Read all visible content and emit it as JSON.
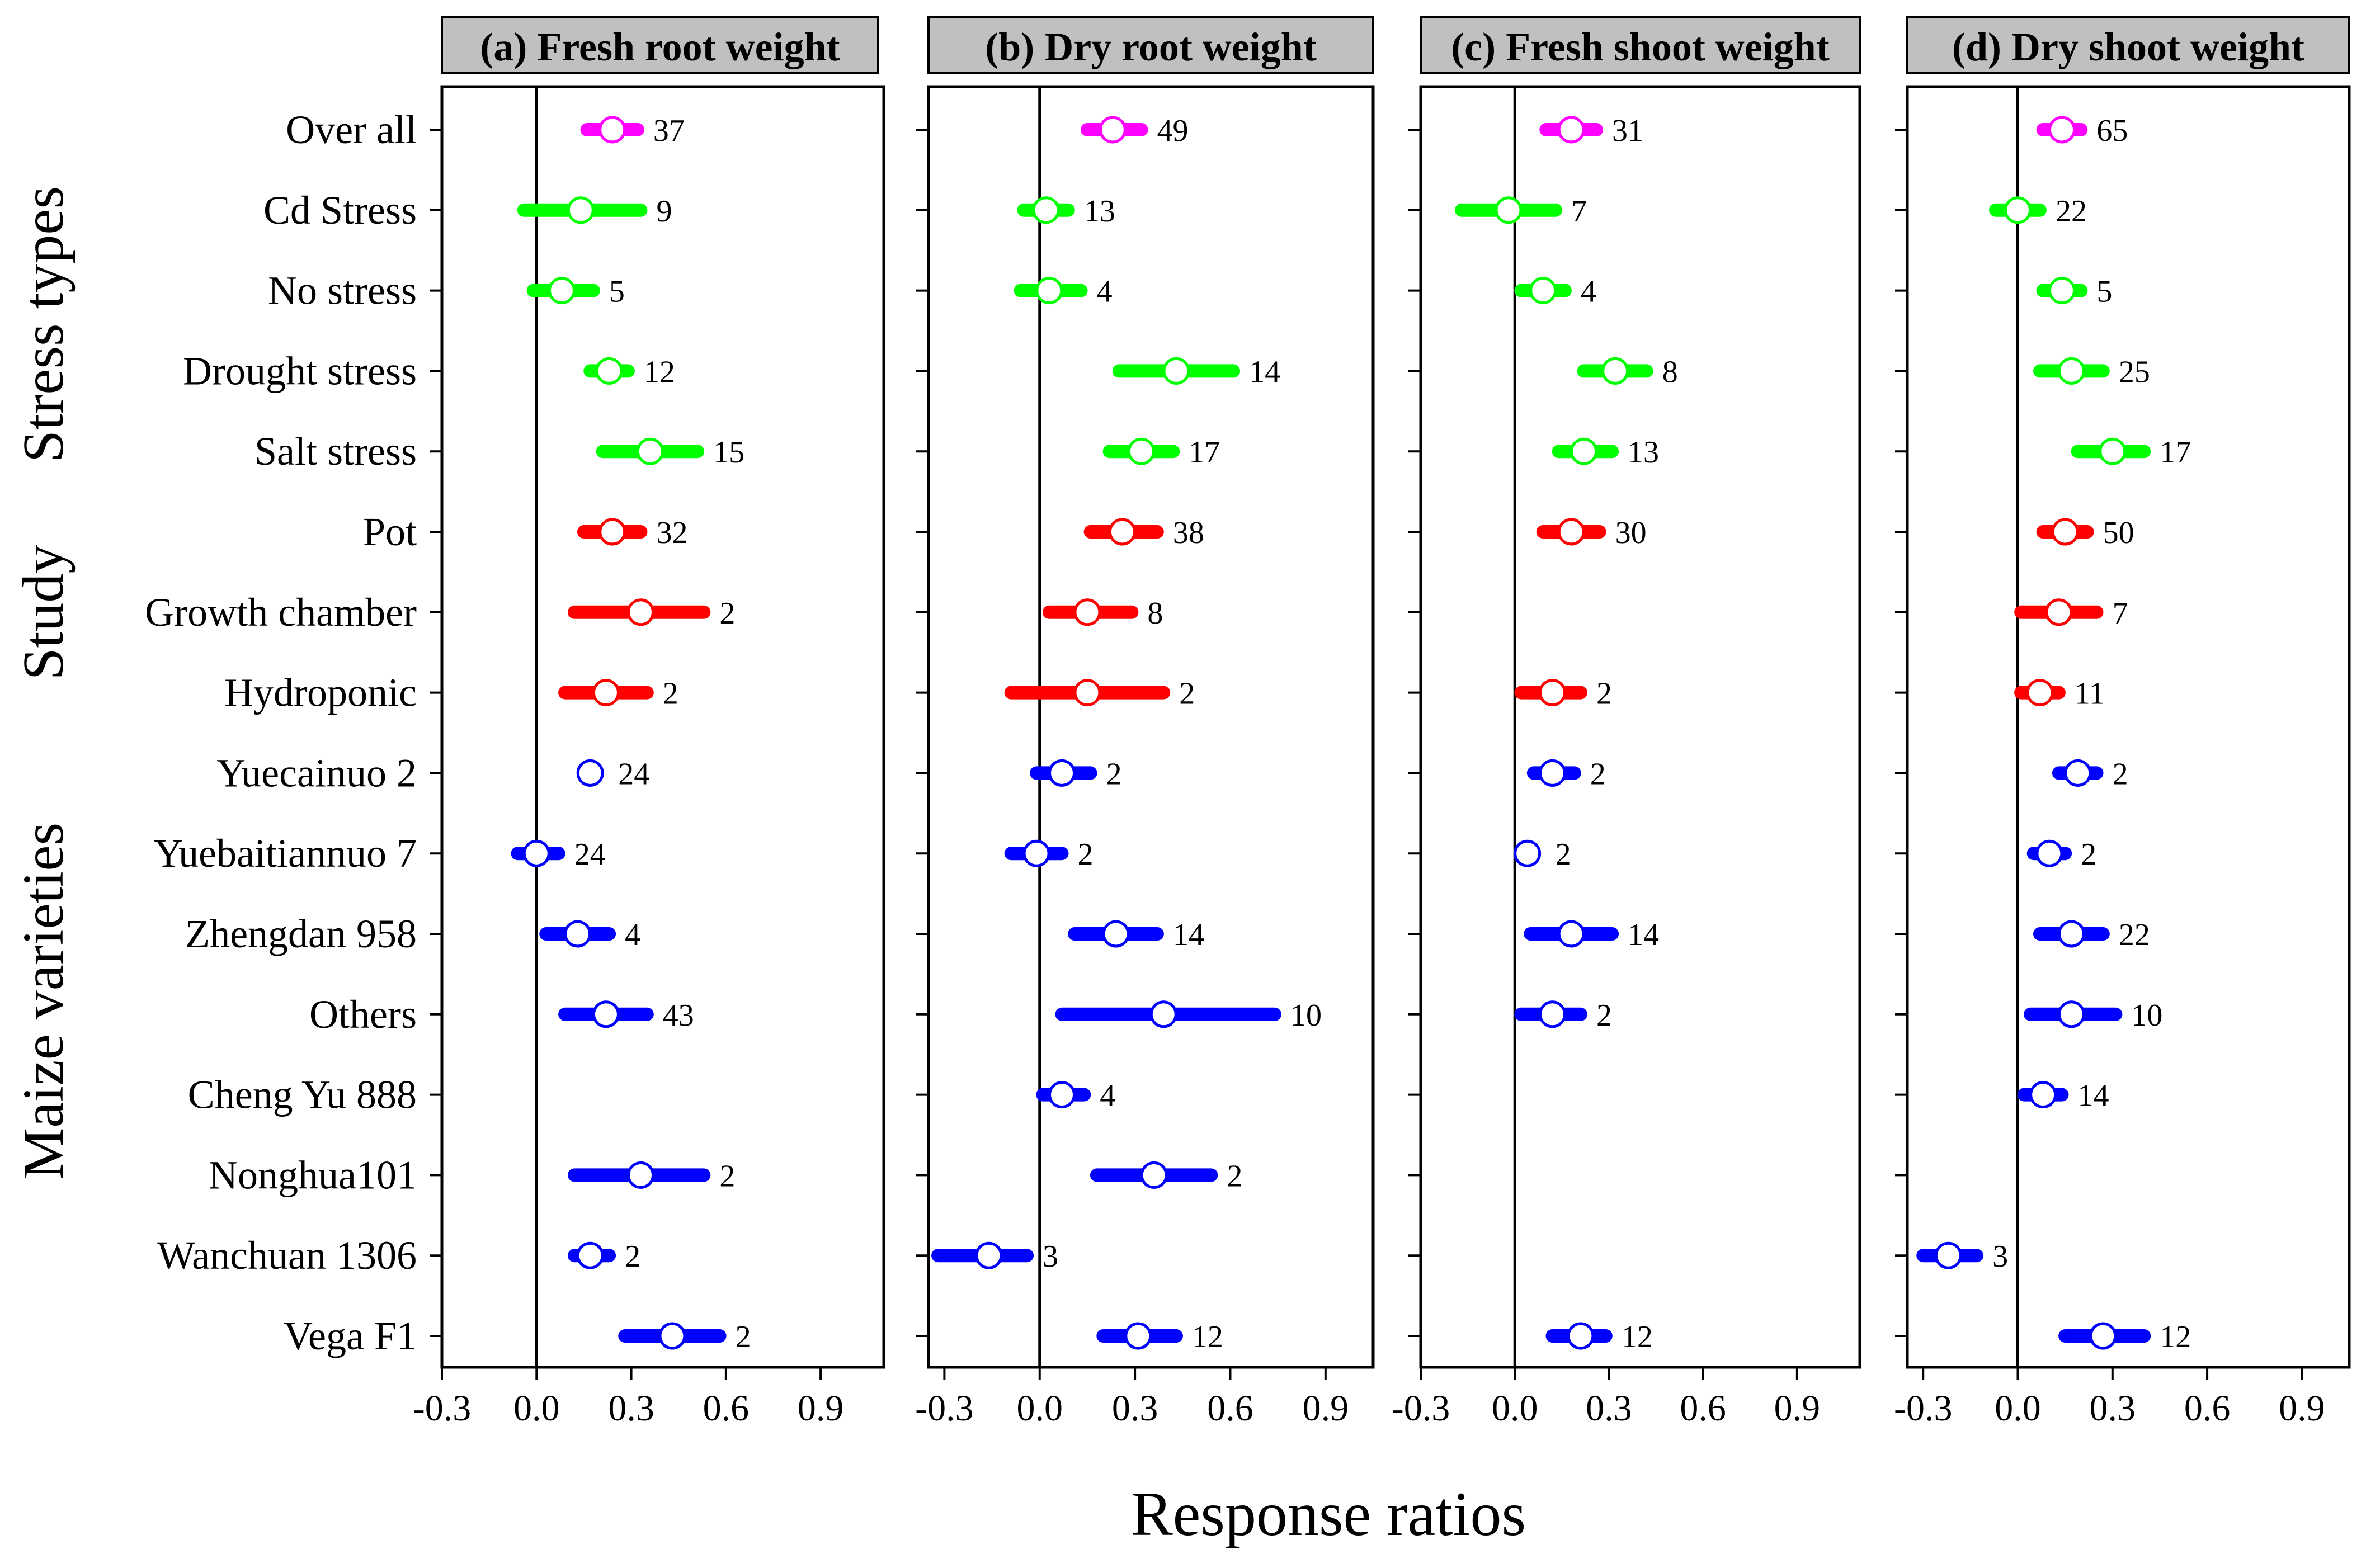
{
  "figure": {
    "x_axis_title": "Response ratios",
    "group_labels": [
      "Stress types",
      "Study",
      "Maize varieties"
    ]
  },
  "rows": [
    "Over all",
    "Cd Stress",
    "No stress",
    "Drought stress",
    "Salt stress",
    "Pot",
    "Growth chamber",
    "Hydroponic",
    "Yuecainuo 2",
    "Yuebaitiannuo 7",
    "Zhengdan 958",
    "Others",
    "Cheng Yu 888",
    "Nonghua101",
    "Wanchuan 1306",
    "Vega F1"
  ],
  "colors": {
    "overall": "#ff00ff",
    "stress": "#00ff00",
    "study": "#ff0000",
    "variety": "#0000ff",
    "panel_header": "#c0c0c0"
  },
  "chart_data": [
    {
      "type": "scatter",
      "title": "(a) Fresh root weight",
      "xlabel": "Response ratios",
      "xlim": [
        -0.3,
        1.1
      ],
      "ticks": [
        "-0.3",
        "0.0",
        "0.3",
        "0.6",
        "0.9"
      ],
      "points": [
        {
          "row": "Over all",
          "group": "overall",
          "mean": 0.24,
          "lo": 0.16,
          "hi": 0.32,
          "n": "37"
        },
        {
          "row": "Cd Stress",
          "group": "stress",
          "mean": 0.14,
          "lo": -0.04,
          "hi": 0.33,
          "n": "9"
        },
        {
          "row": "No stress",
          "group": "stress",
          "mean": 0.08,
          "lo": -0.01,
          "hi": 0.18,
          "n": "5"
        },
        {
          "row": "Drought stress",
          "group": "stress",
          "mean": 0.23,
          "lo": 0.17,
          "hi": 0.29,
          "n": "12"
        },
        {
          "row": "Salt stress",
          "group": "stress",
          "mean": 0.36,
          "lo": 0.21,
          "hi": 0.51,
          "n": "15"
        },
        {
          "row": "Pot",
          "group": "study",
          "mean": 0.24,
          "lo": 0.15,
          "hi": 0.33,
          "n": "32"
        },
        {
          "row": "Growth chamber",
          "group": "study",
          "mean": 0.33,
          "lo": 0.12,
          "hi": 0.53,
          "n": "2"
        },
        {
          "row": "Hydroponic",
          "group": "study",
          "mean": 0.22,
          "lo": 0.09,
          "hi": 0.35,
          "n": "2"
        },
        {
          "row": "Yuecainuo 2",
          "group": "variety",
          "mean": 0.17,
          "lo": 0.17,
          "hi": 0.17,
          "n": "24"
        },
        {
          "row": "Yuebaitiannuo 7",
          "group": "variety",
          "mean": 0.0,
          "lo": -0.06,
          "hi": 0.07,
          "n": "24"
        },
        {
          "row": "Zhengdan 958",
          "group": "variety",
          "mean": 0.13,
          "lo": 0.03,
          "hi": 0.23,
          "n": "4"
        },
        {
          "row": "Others",
          "group": "variety",
          "mean": 0.22,
          "lo": 0.09,
          "hi": 0.35,
          "n": "43"
        },
        {
          "row": "Nonghua101",
          "group": "variety",
          "mean": 0.33,
          "lo": 0.12,
          "hi": 0.53,
          "n": "2"
        },
        {
          "row": "Wanchuan 1306",
          "group": "variety",
          "mean": 0.17,
          "lo": 0.12,
          "hi": 0.23,
          "n": "2"
        },
        {
          "row": "Vega F1",
          "group": "variety",
          "mean": 0.43,
          "lo": 0.28,
          "hi": 0.58,
          "n": "2"
        }
      ]
    },
    {
      "type": "scatter",
      "title": "(b) Dry root weight",
      "xlabel": "Response ratios",
      "xlim": [
        -0.35,
        1.05
      ],
      "ticks": [
        "-0.3",
        "0.0",
        "0.3",
        "0.6",
        "0.9"
      ],
      "points": [
        {
          "row": "Over all",
          "group": "overall",
          "mean": 0.23,
          "lo": 0.15,
          "hi": 0.32,
          "n": "49"
        },
        {
          "row": "Cd Stress",
          "group": "stress",
          "mean": 0.02,
          "lo": -0.05,
          "hi": 0.09,
          "n": "13"
        },
        {
          "row": "No stress",
          "group": "stress",
          "mean": 0.03,
          "lo": -0.06,
          "hi": 0.13,
          "n": "4"
        },
        {
          "row": "Drought stress",
          "group": "stress",
          "mean": 0.43,
          "lo": 0.25,
          "hi": 0.61,
          "n": "14"
        },
        {
          "row": "Salt stress",
          "group": "stress",
          "mean": 0.32,
          "lo": 0.22,
          "hi": 0.42,
          "n": "17"
        },
        {
          "row": "Pot",
          "group": "study",
          "mean": 0.26,
          "lo": 0.16,
          "hi": 0.37,
          "n": "38"
        },
        {
          "row": "Growth chamber",
          "group": "study",
          "mean": 0.15,
          "lo": 0.03,
          "hi": 0.29,
          "n": "8"
        },
        {
          "row": "Hydroponic",
          "group": "study",
          "mean": 0.15,
          "lo": -0.09,
          "hi": 0.39,
          "n": "2"
        },
        {
          "row": "Yuecainuo 2",
          "group": "variety",
          "mean": 0.07,
          "lo": -0.01,
          "hi": 0.16,
          "n": "2"
        },
        {
          "row": "Yuebaitiannuo 7",
          "group": "variety",
          "mean": -0.01,
          "lo": -0.09,
          "hi": 0.07,
          "n": "2"
        },
        {
          "row": "Zhengdan 958",
          "group": "variety",
          "mean": 0.24,
          "lo": 0.11,
          "hi": 0.37,
          "n": "14"
        },
        {
          "row": "Others",
          "group": "variety",
          "mean": 0.39,
          "lo": 0.07,
          "hi": 0.74,
          "n": "10"
        },
        {
          "row": "Cheng Yu 888",
          "group": "variety",
          "mean": 0.07,
          "lo": 0.01,
          "hi": 0.14,
          "n": "4"
        },
        {
          "row": "Nonghua101",
          "group": "variety",
          "mean": 0.36,
          "lo": 0.18,
          "hi": 0.54,
          "n": "2"
        },
        {
          "row": "Wanchuan 1306",
          "group": "variety",
          "mean": -0.16,
          "lo": -0.32,
          "hi": -0.04,
          "n": "3"
        },
        {
          "row": "Vega F1",
          "group": "variety",
          "mean": 0.31,
          "lo": 0.2,
          "hi": 0.43,
          "n": "12"
        }
      ]
    },
    {
      "type": "scatter",
      "title": "(c) Fresh shoot weight",
      "xlabel": "Response ratios",
      "xlim": [
        -0.3,
        1.1
      ],
      "ticks": [
        "-0.3",
        "0.0",
        "0.3",
        "0.6",
        "0.9"
      ],
      "points": [
        {
          "row": "Over all",
          "group": "overall",
          "mean": 0.18,
          "lo": 0.1,
          "hi": 0.26,
          "n": "31"
        },
        {
          "row": "Cd Stress",
          "group": "stress",
          "mean": -0.02,
          "lo": -0.17,
          "hi": 0.13,
          "n": "7"
        },
        {
          "row": "No stress",
          "group": "stress",
          "mean": 0.09,
          "lo": 0.02,
          "hi": 0.16,
          "n": "4"
        },
        {
          "row": "Drought stress",
          "group": "stress",
          "mean": 0.32,
          "lo": 0.22,
          "hi": 0.42,
          "n": "8"
        },
        {
          "row": "Salt stress",
          "group": "stress",
          "mean": 0.22,
          "lo": 0.14,
          "hi": 0.31,
          "n": "13"
        },
        {
          "row": "Pot",
          "group": "study",
          "mean": 0.18,
          "lo": 0.09,
          "hi": 0.27,
          "n": "30"
        },
        {
          "row": "Hydroponic",
          "group": "study",
          "mean": 0.12,
          "lo": 0.02,
          "hi": 0.21,
          "n": "2"
        },
        {
          "row": "Yuecainuo 2",
          "group": "variety",
          "mean": 0.12,
          "lo": 0.06,
          "hi": 0.19,
          "n": "2"
        },
        {
          "row": "Yuebaitiannuo 7",
          "group": "variety",
          "mean": 0.04,
          "lo": 0.04,
          "hi": 0.04,
          "n": "2"
        },
        {
          "row": "Zhengdan 958",
          "group": "variety",
          "mean": 0.18,
          "lo": 0.05,
          "hi": 0.31,
          "n": "14"
        },
        {
          "row": "Others",
          "group": "variety",
          "mean": 0.12,
          "lo": 0.02,
          "hi": 0.21,
          "n": "2"
        },
        {
          "row": "Vega F1",
          "group": "variety",
          "mean": 0.21,
          "lo": 0.12,
          "hi": 0.29,
          "n": "12"
        }
      ]
    },
    {
      "type": "scatter",
      "title": "(d) Dry shoot weight",
      "xlabel": "Response ratios",
      "xlim": [
        -0.35,
        1.05
      ],
      "ticks": [
        "-0.3",
        "0.0",
        "0.3",
        "0.6",
        "0.9"
      ],
      "points": [
        {
          "row": "Over all",
          "group": "overall",
          "mean": 0.14,
          "lo": 0.08,
          "hi": 0.2,
          "n": "65"
        },
        {
          "row": "Cd Stress",
          "group": "stress",
          "mean": 0.0,
          "lo": -0.07,
          "hi": 0.07,
          "n": "22"
        },
        {
          "row": "No stress",
          "group": "stress",
          "mean": 0.14,
          "lo": 0.08,
          "hi": 0.2,
          "n": "5"
        },
        {
          "row": "Drought stress",
          "group": "stress",
          "mean": 0.17,
          "lo": 0.07,
          "hi": 0.27,
          "n": "25"
        },
        {
          "row": "Salt stress",
          "group": "stress",
          "mean": 0.3,
          "lo": 0.19,
          "hi": 0.4,
          "n": "17"
        },
        {
          "row": "Pot",
          "group": "study",
          "mean": 0.15,
          "lo": 0.08,
          "hi": 0.22,
          "n": "50"
        },
        {
          "row": "Growth chamber",
          "group": "study",
          "mean": 0.13,
          "lo": 0.01,
          "hi": 0.25,
          "n": "7"
        },
        {
          "row": "Hydroponic",
          "group": "study",
          "mean": 0.07,
          "lo": 0.01,
          "hi": 0.13,
          "n": "11"
        },
        {
          "row": "Yuecainuo 2",
          "group": "variety",
          "mean": 0.19,
          "lo": 0.13,
          "hi": 0.25,
          "n": "2"
        },
        {
          "row": "Yuebaitiannuo 7",
          "group": "variety",
          "mean": 0.1,
          "lo": 0.05,
          "hi": 0.15,
          "n": "2"
        },
        {
          "row": "Zhengdan 958",
          "group": "variety",
          "mean": 0.17,
          "lo": 0.07,
          "hi": 0.27,
          "n": "22"
        },
        {
          "row": "Others",
          "group": "variety",
          "mean": 0.17,
          "lo": 0.04,
          "hi": 0.31,
          "n": "10"
        },
        {
          "row": "Cheng Yu 888",
          "group": "variety",
          "mean": 0.08,
          "lo": 0.02,
          "hi": 0.14,
          "n": "14"
        },
        {
          "row": "Wanchuan 1306",
          "group": "variety",
          "mean": -0.22,
          "lo": -0.3,
          "hi": -0.13,
          "n": "3"
        },
        {
          "row": "Vega F1",
          "group": "variety",
          "mean": 0.27,
          "lo": 0.15,
          "hi": 0.4,
          "n": "12"
        }
      ]
    }
  ]
}
